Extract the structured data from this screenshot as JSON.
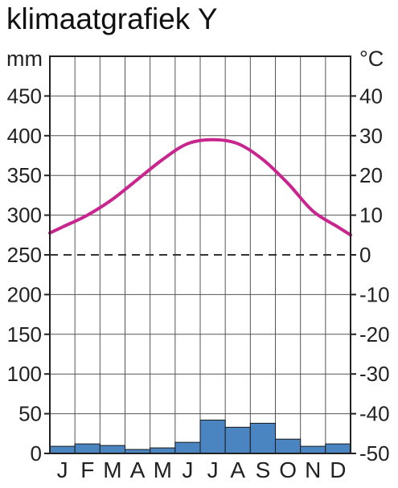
{
  "title": "klimaatgrafiek Y",
  "chart_data": {
    "type": "bar+line",
    "title": "klimaatgrafiek Y",
    "categories": [
      "J",
      "F",
      "M",
      "A",
      "M",
      "J",
      "J",
      "A",
      "S",
      "O",
      "N",
      "D"
    ],
    "precipitation": {
      "unit": "mm",
      "values": [
        9,
        12,
        10,
        5,
        7,
        14,
        42,
        33,
        38,
        18,
        9,
        12
      ],
      "ylim": [
        0,
        500
      ],
      "ticks": [
        0,
        50,
        100,
        150,
        200,
        250,
        300,
        350,
        400,
        450
      ],
      "color": "#4a85c2"
    },
    "temperature": {
      "unit": "°C",
      "values": [
        7,
        10,
        14,
        19,
        24,
        28,
        29,
        28,
        24,
        18,
        11,
        7
      ],
      "ylim": [
        -50,
        50
      ],
      "ticks": [
        -50,
        -40,
        -30,
        -20,
        -10,
        0,
        10,
        20,
        30,
        40
      ],
      "color": "#c8258f"
    },
    "grid": true
  }
}
